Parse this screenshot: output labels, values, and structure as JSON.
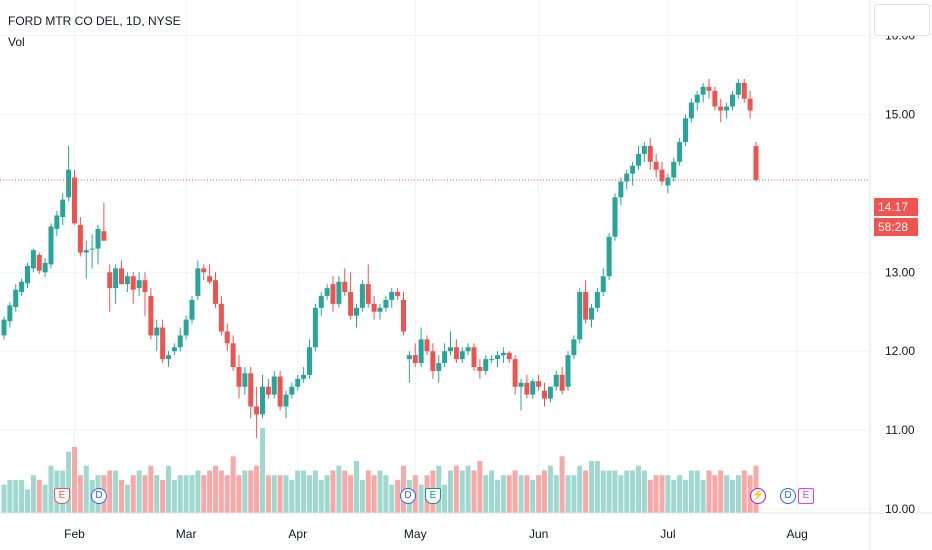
{
  "chart_data": {
    "type": "candlestick",
    "title": "FORD MTR CO DEL, 1D, NYSE",
    "volume_label": "Vol",
    "y_ticks": [
      "16.00",
      "15.00",
      "13.00",
      "12.00",
      "11.00",
      "10.00"
    ],
    "y_range": [
      9.95,
      16.45
    ],
    "x_labels": [
      "Feb",
      "Mar",
      "Apr",
      "May",
      "Jun",
      "Jul",
      "Aug"
    ],
    "last_price": "14.17",
    "countdown": "58:28",
    "colors": {
      "up": "#26a69a",
      "down": "#ef5350",
      "vol_up": "#9fd8cf",
      "vol_down": "#f7a9a7",
      "grid": "#f0f3fa",
      "text": "#131722"
    },
    "candles": [
      [
        12.2,
        12.44,
        12.15,
        12.4
      ],
      [
        12.38,
        12.62,
        12.3,
        12.58
      ],
      [
        12.56,
        12.85,
        12.5,
        12.78
      ],
      [
        12.75,
        12.92,
        12.7,
        12.88
      ],
      [
        12.86,
        13.12,
        12.8,
        13.08
      ],
      [
        13.05,
        13.3,
        13.0,
        13.28
      ],
      [
        13.22,
        13.25,
        12.98,
        13.02
      ],
      [
        13.0,
        13.18,
        12.94,
        13.12
      ],
      [
        13.1,
        13.62,
        13.05,
        13.58
      ],
      [
        13.55,
        13.78,
        13.46,
        13.72
      ],
      [
        13.7,
        14.0,
        13.6,
        13.92
      ],
      [
        13.95,
        14.6,
        13.9,
        14.3
      ],
      [
        14.2,
        14.3,
        13.6,
        13.62
      ],
      [
        13.6,
        13.7,
        13.2,
        13.25
      ],
      [
        13.25,
        13.4,
        12.92,
        13.28
      ],
      [
        13.3,
        13.48,
        13.05,
        13.3
      ],
      [
        13.3,
        13.6,
        13.1,
        13.55
      ],
      [
        13.52,
        13.88,
        13.4,
        13.4
      ],
      [
        13.0,
        13.1,
        12.5,
        12.8
      ],
      [
        12.8,
        13.1,
        12.6,
        13.05
      ],
      [
        13.05,
        13.15,
        12.85,
        12.85
      ],
      [
        12.85,
        13.0,
        12.75,
        12.95
      ],
      [
        12.95,
        13.0,
        12.6,
        12.78
      ],
      [
        12.8,
        13.0,
        12.7,
        12.9
      ],
      [
        12.9,
        13.0,
        12.45,
        12.75
      ],
      [
        12.7,
        12.8,
        12.15,
        12.2
      ],
      [
        12.2,
        12.4,
        12.0,
        12.3
      ],
      [
        12.3,
        12.4,
        11.85,
        11.9
      ],
      [
        11.9,
        12.0,
        11.8,
        11.95
      ],
      [
        12.0,
        12.1,
        11.95,
        12.05
      ],
      [
        12.05,
        12.3,
        12.0,
        12.2
      ],
      [
        12.2,
        12.45,
        12.15,
        12.4
      ],
      [
        12.4,
        12.7,
        12.35,
        12.65
      ],
      [
        12.7,
        13.15,
        12.65,
        13.05
      ],
      [
        13.05,
        13.1,
        12.9,
        13.0
      ],
      [
        12.95,
        13.1,
        12.85,
        12.88
      ],
      [
        12.9,
        13.0,
        12.55,
        12.6
      ],
      [
        12.6,
        12.7,
        12.2,
        12.25
      ],
      [
        12.25,
        12.35,
        12.0,
        12.1
      ],
      [
        12.1,
        12.2,
        11.75,
        11.8
      ],
      [
        11.8,
        11.95,
        11.4,
        11.55
      ],
      [
        11.55,
        11.8,
        11.45,
        11.72
      ],
      [
        11.72,
        11.8,
        11.15,
        11.3
      ],
      [
        11.3,
        11.55,
        10.9,
        11.2
      ],
      [
        11.2,
        11.7,
        11.15,
        11.55
      ],
      [
        11.55,
        11.65,
        11.4,
        11.45
      ],
      [
        11.45,
        11.75,
        11.4,
        11.68
      ],
      [
        11.68,
        11.75,
        11.25,
        11.3
      ],
      [
        11.3,
        11.5,
        11.15,
        11.45
      ],
      [
        11.45,
        11.6,
        11.4,
        11.55
      ],
      [
        11.55,
        11.7,
        11.5,
        11.65
      ],
      [
        11.65,
        11.8,
        11.6,
        11.7
      ],
      [
        11.7,
        12.15,
        11.65,
        12.05
      ],
      [
        12.05,
        12.6,
        12.0,
        12.55
      ],
      [
        12.55,
        12.75,
        12.45,
        12.7
      ],
      [
        12.7,
        12.85,
        12.65,
        12.8
      ],
      [
        12.85,
        12.95,
        12.5,
        12.6
      ],
      [
        12.6,
        12.95,
        12.55,
        12.88
      ],
      [
        12.88,
        13.05,
        12.7,
        12.75
      ],
      [
        12.75,
        13.0,
        12.4,
        12.45
      ],
      [
        12.45,
        12.6,
        12.3,
        12.55
      ],
      [
        12.55,
        12.9,
        12.5,
        12.85
      ],
      [
        12.85,
        13.1,
        12.55,
        12.6
      ],
      [
        12.6,
        12.7,
        12.4,
        12.5
      ],
      [
        12.5,
        12.6,
        12.4,
        12.55
      ],
      [
        12.55,
        12.7,
        12.5,
        12.65
      ],
      [
        12.65,
        12.8,
        12.55,
        12.75
      ],
      [
        12.75,
        12.8,
        12.65,
        12.7
      ],
      [
        12.65,
        12.75,
        12.2,
        12.25
      ],
      [
        11.9,
        12.0,
        11.6,
        11.95
      ],
      [
        11.95,
        12.1,
        11.8,
        11.85
      ],
      [
        11.85,
        12.3,
        11.8,
        12.15
      ],
      [
        12.15,
        12.2,
        11.95,
        12.0
      ],
      [
        12.0,
        12.1,
        11.65,
        11.75
      ],
      [
        11.75,
        11.95,
        11.6,
        11.85
      ],
      [
        11.85,
        12.1,
        11.8,
        12.0
      ],
      [
        12.0,
        12.25,
        11.95,
        12.05
      ],
      [
        12.05,
        12.15,
        11.85,
        11.9
      ],
      [
        11.9,
        12.05,
        11.85,
        12.0
      ],
      [
        12.0,
        12.1,
        11.95,
        12.05
      ],
      [
        12.05,
        12.1,
        11.75,
        11.8
      ],
      [
        11.8,
        11.9,
        11.65,
        11.75
      ],
      [
        11.75,
        11.95,
        11.7,
        11.9
      ],
      [
        11.9,
        11.95,
        11.85,
        11.9
      ],
      [
        11.9,
        12.0,
        11.8,
        11.95
      ],
      [
        11.95,
        12.05,
        11.85,
        11.98
      ],
      [
        11.98,
        12.0,
        11.85,
        11.9
      ],
      [
        11.9,
        11.95,
        11.45,
        11.55
      ],
      [
        11.55,
        11.65,
        11.25,
        11.6
      ],
      [
        11.6,
        11.7,
        11.4,
        11.45
      ],
      [
        11.45,
        11.65,
        11.4,
        11.62
      ],
      [
        11.62,
        11.7,
        11.5,
        11.55
      ],
      [
        11.5,
        11.6,
        11.3,
        11.4
      ],
      [
        11.4,
        11.55,
        11.35,
        11.55
      ],
      [
        11.55,
        11.75,
        11.5,
        11.7
      ],
      [
        11.7,
        11.8,
        11.45,
        11.5
      ],
      [
        11.55,
        12.0,
        11.5,
        11.95
      ],
      [
        11.95,
        12.2,
        11.9,
        12.15
      ],
      [
        12.15,
        12.8,
        12.1,
        12.75
      ],
      [
        12.75,
        12.9,
        12.35,
        12.4
      ],
      [
        12.4,
        12.6,
        12.3,
        12.55
      ],
      [
        12.55,
        12.8,
        12.5,
        12.75
      ],
      [
        12.75,
        13.05,
        12.7,
        12.95
      ],
      [
        12.95,
        13.5,
        12.9,
        13.45
      ],
      [
        13.45,
        14.0,
        13.4,
        13.95
      ],
      [
        13.95,
        14.2,
        13.85,
        14.15
      ],
      [
        14.15,
        14.3,
        14.05,
        14.25
      ],
      [
        14.25,
        14.4,
        14.1,
        14.35
      ],
      [
        14.35,
        14.6,
        14.3,
        14.5
      ],
      [
        14.5,
        14.65,
        14.4,
        14.6
      ],
      [
        14.6,
        14.7,
        14.3,
        14.4
      ],
      [
        14.4,
        14.5,
        14.2,
        14.3
      ],
      [
        14.3,
        14.4,
        14.1,
        14.15
      ],
      [
        14.1,
        14.25,
        14.0,
        14.2
      ],
      [
        14.2,
        14.45,
        14.15,
        14.4
      ],
      [
        14.4,
        14.7,
        14.35,
        14.65
      ],
      [
        14.65,
        15.0,
        14.6,
        14.95
      ],
      [
        14.95,
        15.2,
        14.9,
        15.15
      ],
      [
        15.15,
        15.3,
        15.05,
        15.25
      ],
      [
        15.25,
        15.4,
        15.15,
        15.35
      ],
      [
        15.35,
        15.45,
        15.2,
        15.3
      ],
      [
        15.3,
        15.35,
        15.05,
        15.1
      ],
      [
        15.1,
        15.2,
        14.9,
        15.05
      ],
      [
        15.05,
        15.15,
        14.95,
        15.1
      ],
      [
        15.1,
        15.3,
        15.05,
        15.25
      ],
      [
        15.25,
        15.45,
        15.2,
        15.4
      ],
      [
        15.4,
        15.45,
        15.15,
        15.2
      ],
      [
        15.2,
        15.3,
        14.95,
        15.05
      ],
      [
        14.6,
        14.65,
        14.15,
        14.17
      ]
    ],
    "volume": [
      6,
      7,
      7,
      7,
      5,
      8,
      7,
      6,
      10,
      9,
      9,
      13,
      14,
      8,
      10,
      7,
      8,
      8,
      9,
      9,
      7,
      6,
      8,
      9,
      8,
      10,
      8,
      7,
      10,
      7,
      8,
      8,
      8,
      9,
      8,
      9,
      10,
      9,
      8,
      12,
      8,
      9,
      9,
      10,
      18,
      8,
      8,
      8,
      8,
      7,
      9,
      9,
      8,
      9,
      7,
      8,
      9,
      10,
      9,
      8,
      11,
      7,
      9,
      8,
      9,
      8,
      6,
      7,
      10,
      7,
      8,
      6,
      8,
      9,
      10,
      6,
      9,
      10,
      9,
      10,
      9,
      11,
      8,
      9,
      7,
      8,
      8,
      9,
      8,
      8,
      7,
      8,
      9,
      10,
      8,
      12,
      8,
      8,
      10,
      9,
      11,
      11,
      9,
      9,
      9,
      8,
      9,
      9,
      10,
      9,
      7,
      8,
      8,
      8,
      7,
      8,
      7,
      9,
      9,
      7,
      9,
      8,
      9,
      8,
      7,
      8,
      9,
      8,
      10
    ]
  },
  "events": [
    {
      "label": "E",
      "kind": "e-red"
    },
    {
      "label": "D",
      "kind": "d"
    },
    {
      "label": "D",
      "kind": "d"
    },
    {
      "label": "E",
      "kind": "e-green"
    },
    {
      "label": "⚡",
      "kind": "split"
    },
    {
      "label": "D",
      "kind": "d"
    },
    {
      "label": "E",
      "kind": "e-pink"
    }
  ]
}
